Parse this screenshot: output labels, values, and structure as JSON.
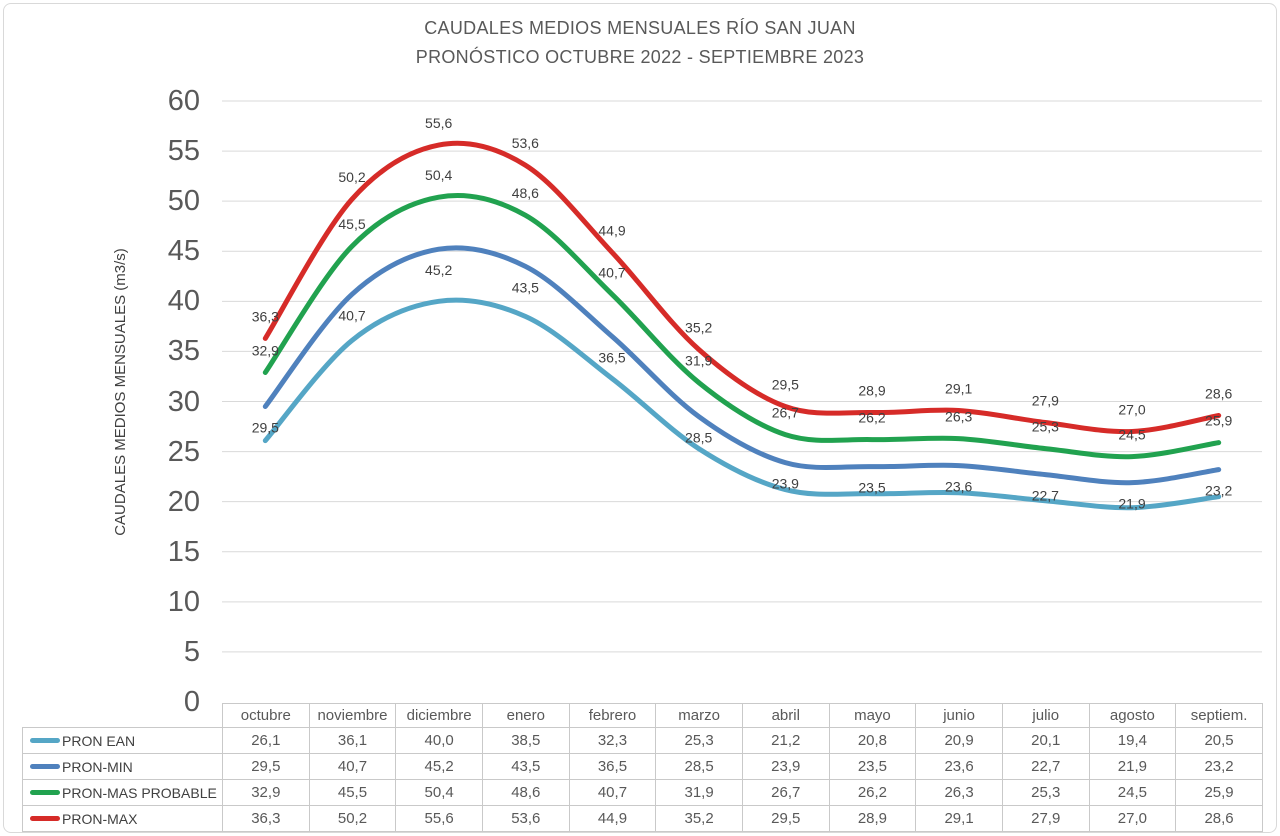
{
  "colors": {
    "grid": "#d9d9d9",
    "title_text": "#595959",
    "axis_text": "#595959",
    "data_label_text": "#404040",
    "table_border": "#c9c9c9",
    "table_text": "#595959",
    "frame_border": "#d9d9d9"
  },
  "chart_data": {
    "type": "line",
    "title": "CAUDALES MEDIOS MENSUALES RÍO SAN JUAN",
    "subtitle": "PRONÓSTICO OCTUBRE 2022 - SEPTIEMBRE 2023",
    "xlabel": "",
    "ylabel": "CAUDALES MEDIOS MENSUALES (m3/s)",
    "ylim": [
      0,
      60
    ],
    "ytick_step": 5,
    "grid": true,
    "smooth_lines": true,
    "legend_position": "data-table-left",
    "decimal_separator": ",",
    "categories": [
      "octubre",
      "noviembre",
      "diciembre",
      "enero",
      "febrero",
      "marzo",
      "abril",
      "mayo",
      "junio",
      "julio",
      "agosto",
      "septiem."
    ],
    "series": [
      {
        "name": "PRON EAN",
        "color": "#55a6c6",
        "data_labels": "none",
        "values": [
          26.1,
          36.1,
          40.0,
          38.5,
          32.3,
          25.3,
          21.2,
          20.8,
          20.9,
          20.1,
          19.4,
          20.5
        ]
      },
      {
        "name": "PRON-MIN",
        "color": "#4f81bd",
        "data_labels": "below",
        "values": [
          29.5,
          40.7,
          45.2,
          43.5,
          36.5,
          28.5,
          23.9,
          23.5,
          23.6,
          22.7,
          21.9,
          23.2
        ]
      },
      {
        "name": "PRON-MAS PROBABLE",
        "color": "#21a24f",
        "data_labels": "above",
        "values": [
          32.9,
          45.5,
          50.4,
          48.6,
          40.7,
          31.9,
          26.7,
          26.2,
          26.3,
          25.3,
          24.5,
          25.9
        ]
      },
      {
        "name": "PRON-MAX",
        "color": "#d62b28",
        "data_labels": "above",
        "values": [
          36.3,
          50.2,
          55.6,
          53.6,
          44.9,
          35.2,
          29.5,
          28.9,
          29.1,
          27.9,
          27.0,
          28.6
        ]
      }
    ]
  }
}
